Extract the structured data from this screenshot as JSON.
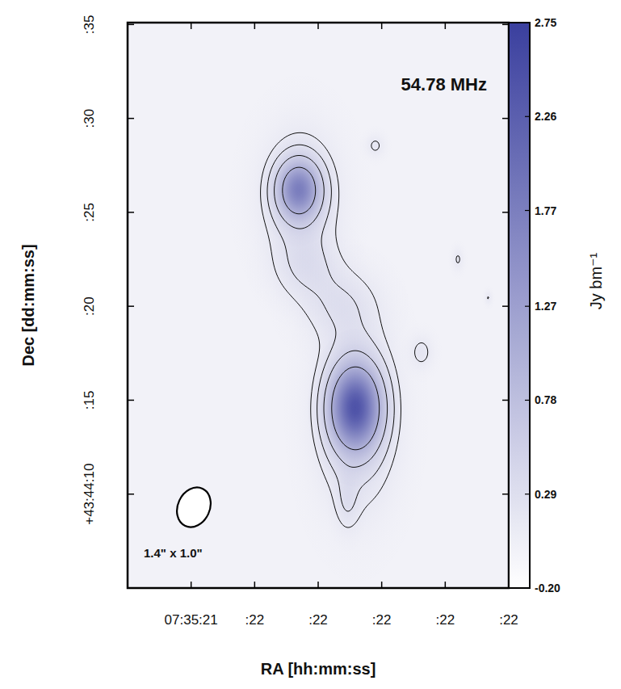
{
  "chart_data": {
    "type": "heatmap",
    "annotation": "54.78 MHz",
    "x_label": "RA [hh:mm:ss]",
    "y_label": "Dec [dd:mm:ss]",
    "xlim": [
      21.8,
      22.4
    ],
    "xticks": [
      {
        "value": 21.9,
        "label": "07:35:21"
      },
      {
        "value": 22.0,
        "label": ":22"
      },
      {
        "value": 22.1,
        "label": ":22"
      },
      {
        "value": 22.2,
        "label": ":22"
      },
      {
        "value": 22.3,
        "label": ":22"
      },
      {
        "value": 22.4,
        "label": ":22"
      }
    ],
    "ylim": [
      5,
      35.1
    ],
    "yticks": [
      {
        "value": 10,
        "label": "+43:44:10"
      },
      {
        "value": 15,
        "label": ":15"
      },
      {
        "value": 20,
        "label": ":20"
      },
      {
        "value": 25,
        "label": ":25"
      },
      {
        "value": 30,
        "label": ":30"
      },
      {
        "value": 35,
        "label": ":35"
      }
    ],
    "components": [
      {
        "x": 22.0695,
        "y": 26.2,
        "peak": 1.75,
        "sigma_x": 0.0216,
        "sigma_y": 1.0
      },
      {
        "x": 22.072,
        "y": 25.8,
        "peak": 0.45,
        "sigma_x": 0.038,
        "sigma_y": 2.2
      },
      {
        "x": 22.1585,
        "y": 14.6,
        "peak": 2.55,
        "sigma_x": 0.025,
        "sigma_y": 1.4
      },
      {
        "x": 22.16,
        "y": 14.3,
        "peak": 0.6,
        "sigma_x": 0.038,
        "sigma_y": 3.0
      },
      {
        "x": 22.082,
        "y": 22.1,
        "peak": 0.25,
        "sigma_x": 0.035,
        "sigma_y": 1.2
      },
      {
        "x": 22.133,
        "y": 20.1,
        "peak": 0.25,
        "sigma_x": 0.04,
        "sigma_y": 1.3
      },
      {
        "x": 22.146,
        "y": 9.6,
        "peak": 0.2,
        "sigma_x": 0.012,
        "sigma_y": 1.0
      },
      {
        "x": 22.19,
        "y": 28.55,
        "peak": 0.18,
        "sigma_x": 0.01,
        "sigma_y": 0.4
      },
      {
        "x": 22.263,
        "y": 17.56,
        "peak": 0.2,
        "sigma_x": 0.012,
        "sigma_y": 0.6
      },
      {
        "x": 22.32,
        "y": 22.5,
        "peak": 0.17,
        "sigma_x": 0.006,
        "sigma_y": 0.4
      },
      {
        "x": 22.368,
        "y": 20.45,
        "peak": 0.16,
        "sigma_x": 0.004,
        "sigma_y": 0.25
      }
    ],
    "contour_levels": [
      0.15,
      0.3,
      0.6,
      1.2
    ],
    "colorbar": {
      "label": "Jy bm⁻¹",
      "range": [
        -0.2,
        2.75
      ],
      "ticks": [
        {
          "value": -0.2,
          "label": "-0.20"
        },
        0.29,
        0.78,
        1.27,
        1.77,
        2.26,
        2.75
      ]
    },
    "beam": {
      "major": 1.4,
      "minor": 1.0,
      "label": "1.4\" x 1.0\""
    },
    "color": "#3a3f9e"
  }
}
